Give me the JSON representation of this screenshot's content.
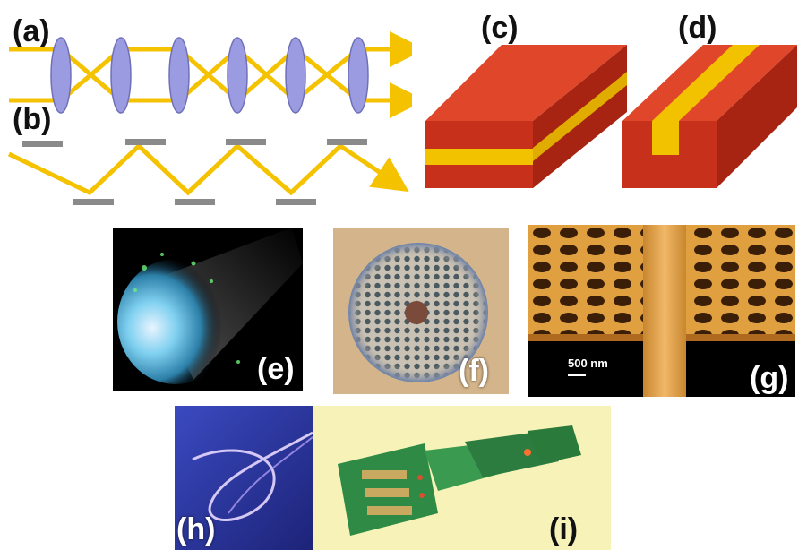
{
  "figure": {
    "panels": [
      {
        "id": "a",
        "label": "(a)",
        "content": "lens-guide"
      },
      {
        "id": "b",
        "label": "(b)",
        "content": "mirror-guide"
      },
      {
        "id": "c",
        "label": "(c)",
        "content": "slab-waveguide"
      },
      {
        "id": "d",
        "label": "(d)",
        "content": "channel-waveguide"
      },
      {
        "id": "e",
        "label": "(e)",
        "content": "optical-fiber-bundle-photo"
      },
      {
        "id": "f",
        "label": "(f)",
        "content": "photonic-crystal-fiber-photo"
      },
      {
        "id": "g",
        "label": "(g)",
        "content": "photonic-crystal-waveguide-sem",
        "scale_bar": "500 nm"
      },
      {
        "id": "h",
        "label": "(h)",
        "content": "polymer-fiber-photo"
      },
      {
        "id": "i",
        "label": "(i)",
        "content": "flexible-optical-circuit-photo"
      }
    ]
  },
  "colors": {
    "beam": "#f5c200",
    "lens": "#9a9be0",
    "mirror": "#8a8a8a",
    "cladding": "#c7301a",
    "core": "#f2c200"
  }
}
